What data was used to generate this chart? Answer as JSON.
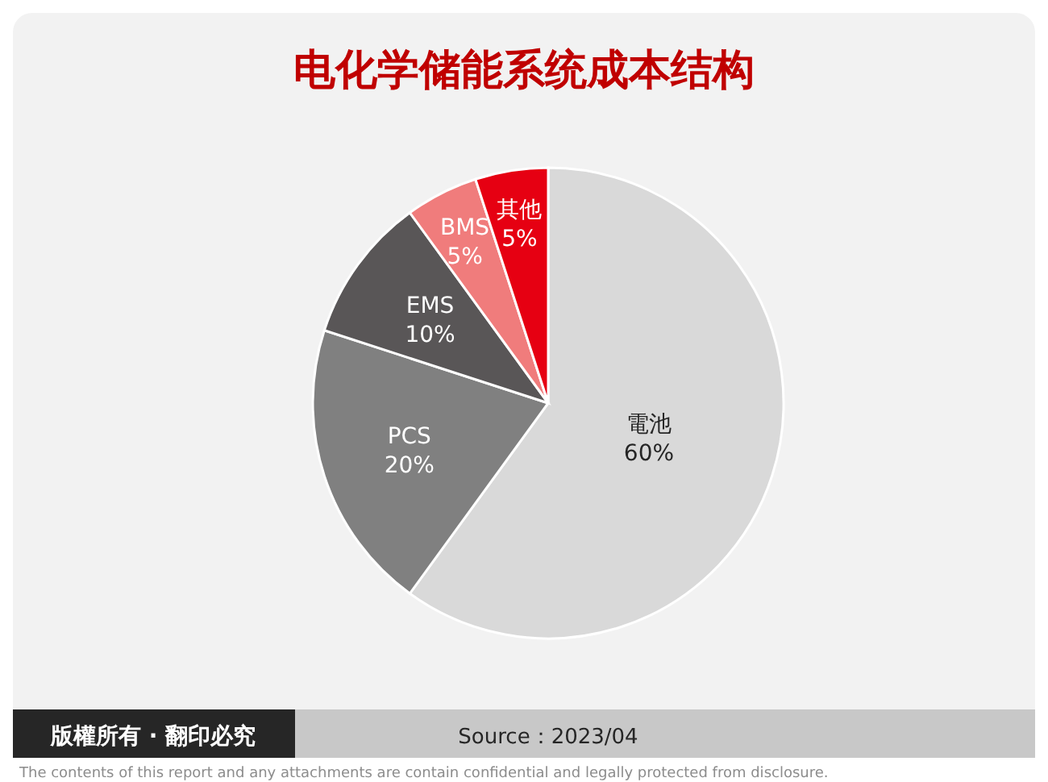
{
  "chart_data": {
    "type": "pie",
    "title": "电化学储能系统成本结构",
    "categories": [
      "電池",
      "PCS",
      "EMS",
      "BMS",
      "其他"
    ],
    "values": [
      60,
      20,
      10,
      5,
      5
    ],
    "value_labels": [
      "60%",
      "20%",
      "10%",
      "5%",
      "5%"
    ],
    "colors": [
      "#d9d9d9",
      "#808080",
      "#595657",
      "#f07c7c",
      "#e60012"
    ],
    "annotations": [
      "版權所有 · 翻印必究",
      "Source：2023/04",
      "The contents of this report and any attachments are contain confidential and legally protected from disclosure."
    ]
  }
}
